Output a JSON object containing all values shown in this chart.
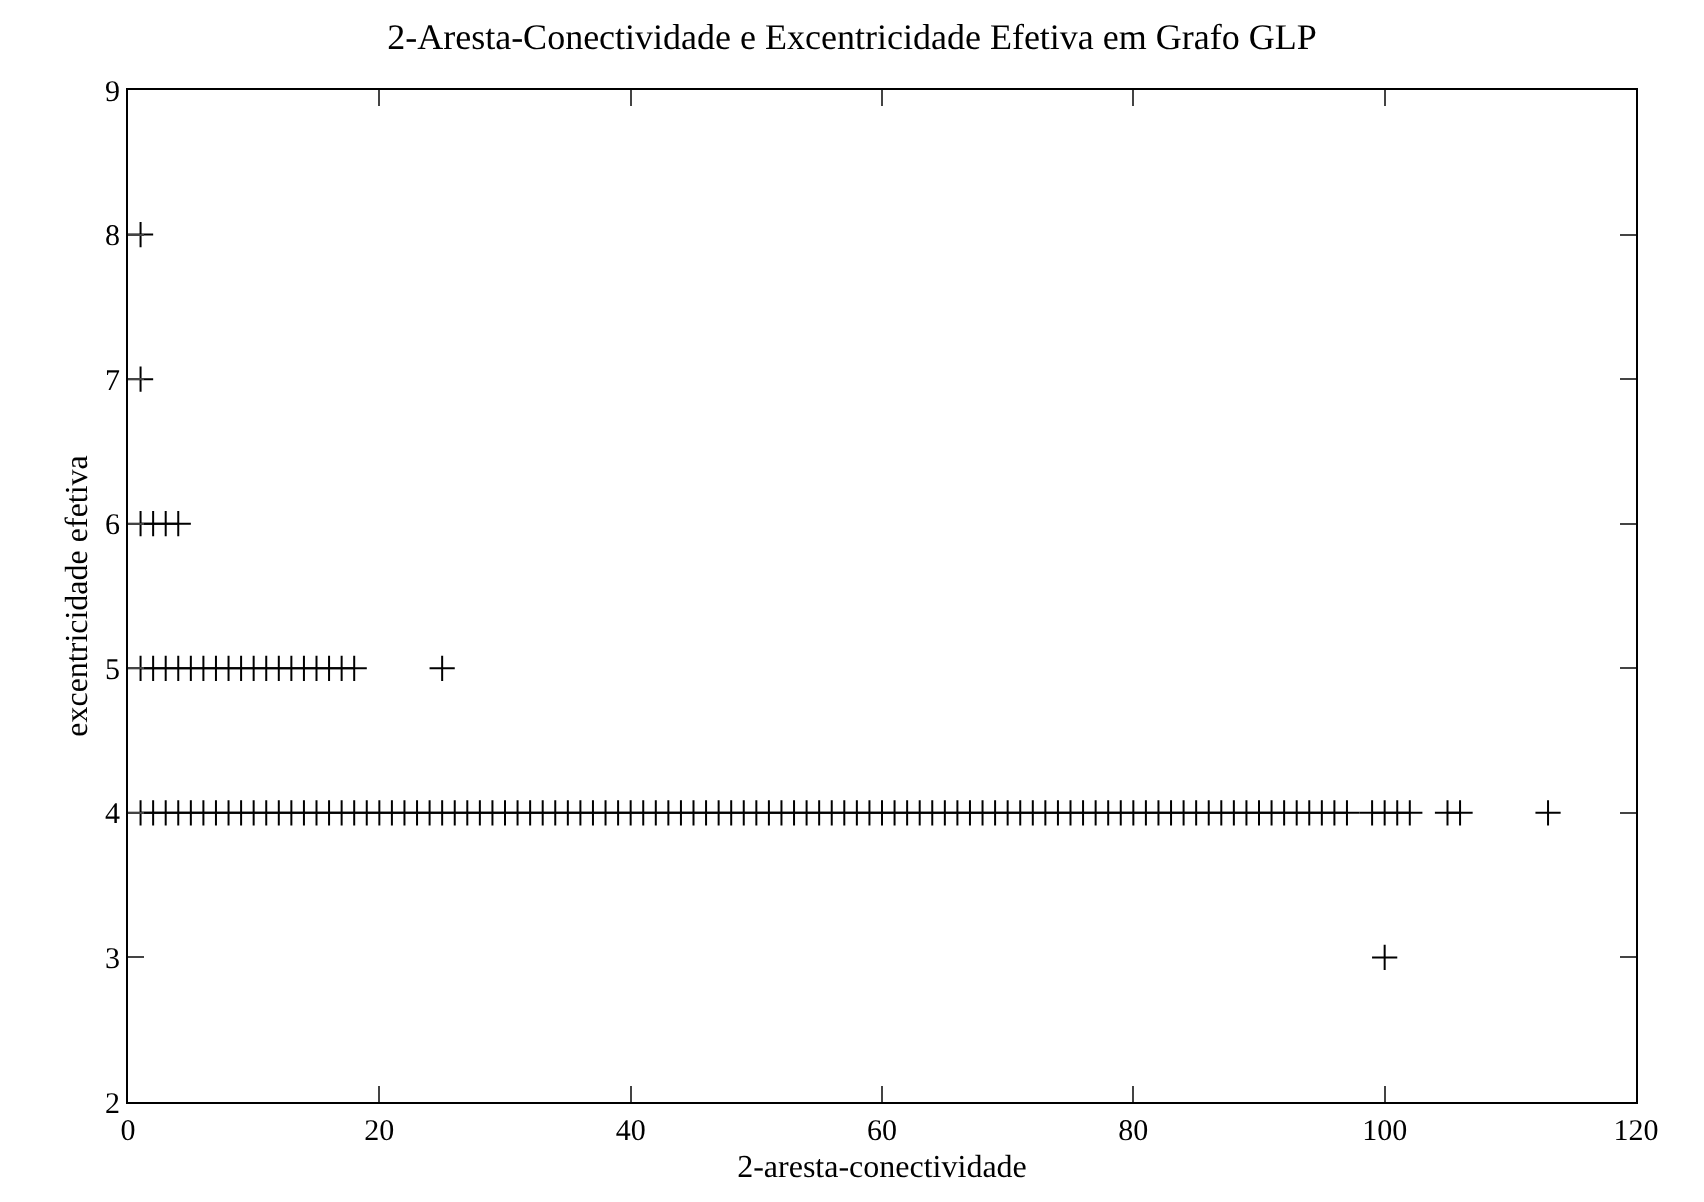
{
  "chart_data": {
    "type": "scatter",
    "title": "2-Aresta-Conectividade e Excentricidade Efetiva em Grafo GLP",
    "xlabel": "2-aresta-conectividade",
    "ylabel": "excentricidade efetiva",
    "xlim": [
      0,
      120
    ],
    "ylim": [
      2,
      9
    ],
    "xticks": [
      0,
      20,
      40,
      60,
      80,
      100,
      120
    ],
    "yticks": [
      2,
      3,
      4,
      5,
      6,
      7,
      8,
      9
    ],
    "grid": false,
    "marker": "cross",
    "series": [
      {
        "color": "#000000",
        "x": [
          1,
          1,
          1,
          2,
          3,
          4,
          1,
          2,
          3,
          4,
          5,
          6,
          7,
          8,
          9,
          10,
          11,
          12,
          13,
          14,
          15,
          16,
          17,
          18,
          25,
          1,
          2,
          3,
          4,
          5,
          6,
          7,
          8,
          9,
          10,
          11,
          12,
          13,
          14,
          15,
          16,
          17,
          18,
          19,
          20,
          21,
          22,
          23,
          24,
          25,
          26,
          27,
          28,
          29,
          30,
          31,
          32,
          33,
          34,
          35,
          36,
          37,
          38,
          39,
          40,
          41,
          42,
          43,
          44,
          45,
          46,
          47,
          48,
          49,
          50,
          51,
          52,
          53,
          54,
          55,
          56,
          57,
          58,
          59,
          60,
          61,
          62,
          63,
          64,
          65,
          66,
          67,
          68,
          69,
          70,
          71,
          72,
          73,
          74,
          75,
          76,
          77,
          78,
          79,
          80,
          81,
          82,
          83,
          84,
          85,
          86,
          87,
          88,
          89,
          90,
          91,
          92,
          93,
          94,
          95,
          96,
          97,
          99,
          100,
          101,
          102,
          105,
          106,
          113,
          100
        ],
        "values": [
          8,
          7,
          6,
          6,
          6,
          6,
          5,
          5,
          5,
          5,
          5,
          5,
          5,
          5,
          5,
          5,
          5,
          5,
          5,
          5,
          5,
          5,
          5,
          5,
          5,
          4,
          4,
          4,
          4,
          4,
          4,
          4,
          4,
          4,
          4,
          4,
          4,
          4,
          4,
          4,
          4,
          4,
          4,
          4,
          4,
          4,
          4,
          4,
          4,
          4,
          4,
          4,
          4,
          4,
          4,
          4,
          4,
          4,
          4,
          4,
          4,
          4,
          4,
          4,
          4,
          4,
          4,
          4,
          4,
          4,
          4,
          4,
          4,
          4,
          4,
          4,
          4,
          4,
          4,
          4,
          4,
          4,
          4,
          4,
          4,
          4,
          4,
          4,
          4,
          4,
          4,
          4,
          4,
          4,
          4,
          4,
          4,
          4,
          4,
          4,
          4,
          4,
          4,
          4,
          4,
          4,
          4,
          4,
          4,
          4,
          4,
          4,
          4,
          4,
          4,
          4,
          4,
          4,
          4,
          4,
          4,
          4,
          4,
          4,
          4,
          4,
          4,
          4,
          4,
          3
        ]
      }
    ]
  }
}
